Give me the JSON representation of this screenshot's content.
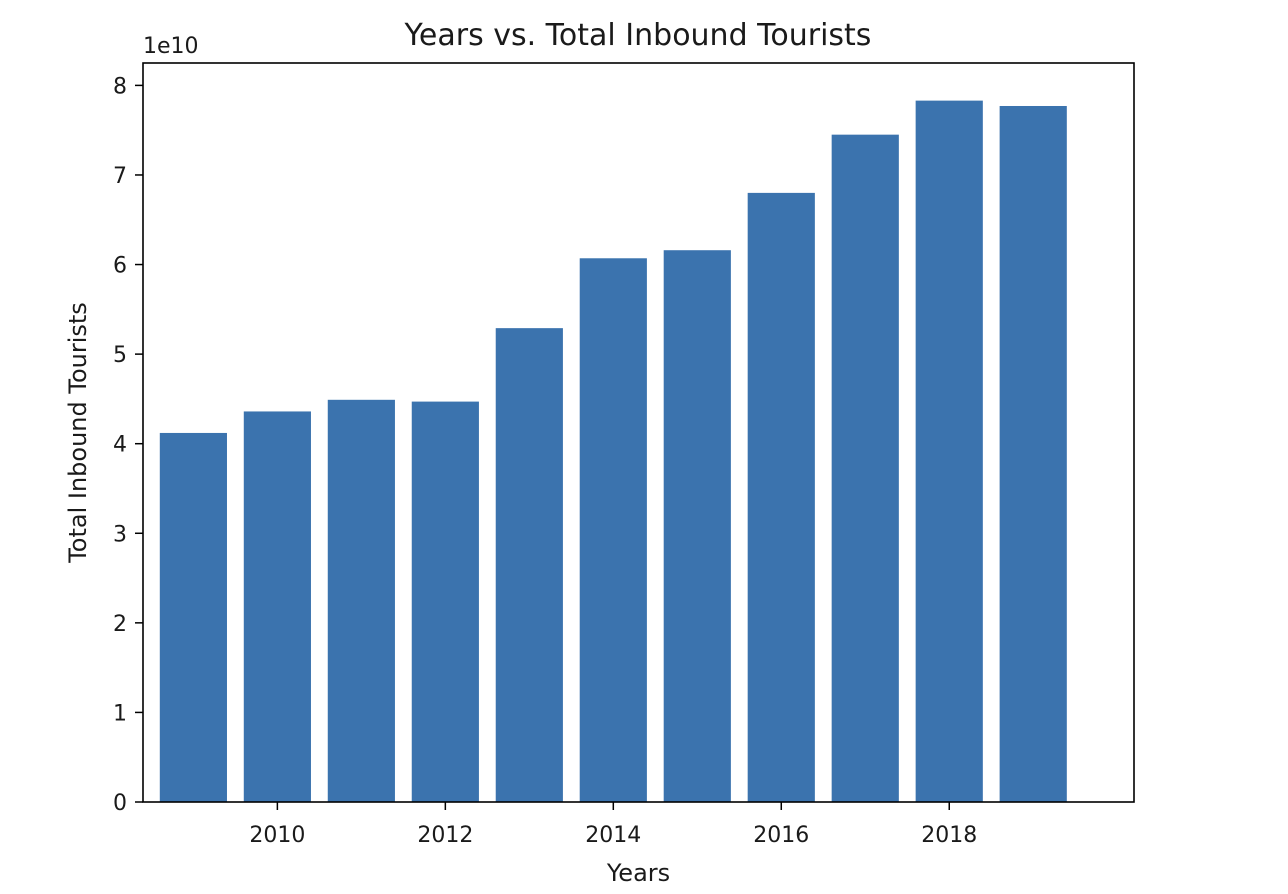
{
  "chart_data": {
    "type": "bar",
    "title": "Years vs. Total Inbound Tourists",
    "xlabel": "Years",
    "ylabel": "Total Inbound Tourists",
    "y_multiplier_label": "1e10",
    "y_multiplier": 10000000000,
    "x": [
      2009,
      2010,
      2011,
      2012,
      2013,
      2014,
      2015,
      2016,
      2017,
      2018,
      2019
    ],
    "values": [
      41200000000,
      43600000000,
      44900000000,
      44700000000,
      52900000000,
      60700000000,
      61600000000,
      68000000000,
      74500000000,
      78300000000,
      77700000000
    ],
    "xticks": [
      2010,
      2012,
      2014,
      2016,
      2018
    ],
    "yticks": [
      0,
      1,
      2,
      3,
      4,
      5,
      6,
      7,
      8
    ],
    "xlim": [
      2008.4,
      2020.2
    ],
    "ylim": [
      0,
      8.25
    ],
    "bar_width": 0.8,
    "bar_color": "#3b73ae",
    "grid": false,
    "legend": "none"
  }
}
